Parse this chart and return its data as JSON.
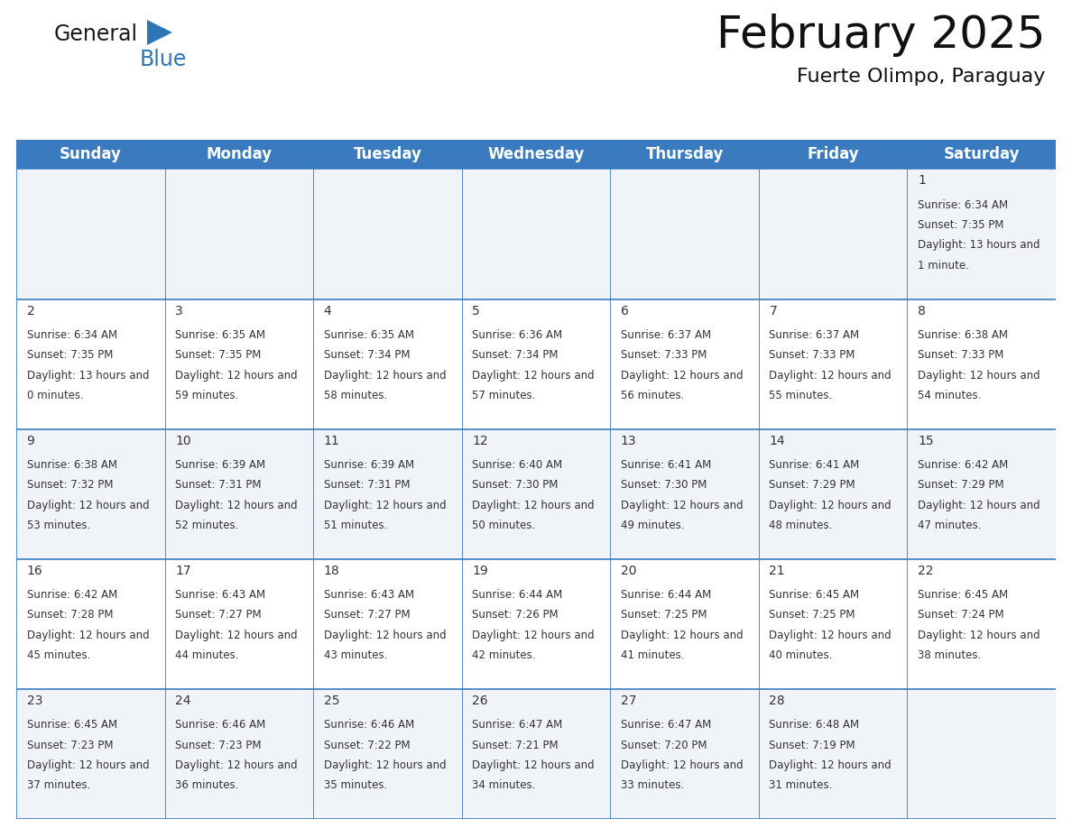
{
  "title": "February 2025",
  "subtitle": "Fuerte Olimpo, Paraguay",
  "header_color": "#3a7bbf",
  "header_text_color": "#ffffff",
  "cell_border_color": "#3a7bbf",
  "odd_row_bg": "#f0f4f8",
  "even_row_bg": "#ffffff",
  "day_headers": [
    "Sunday",
    "Monday",
    "Tuesday",
    "Wednesday",
    "Thursday",
    "Friday",
    "Saturday"
  ],
  "title_fontsize": 36,
  "subtitle_fontsize": 16,
  "header_fontsize": 12,
  "day_num_fontsize": 10,
  "info_fontsize": 8.5,
  "background_color": "#ffffff",
  "day_num_color": "#333333",
  "info_color": "#333333",
  "num_rows": 5,
  "num_cols": 7,
  "calendar_data": [
    [
      null,
      null,
      null,
      null,
      null,
      null,
      {
        "day": 1,
        "sunrise": "6:34 AM",
        "sunset": "7:35 PM",
        "daylight": "13 hours and 1 minute."
      }
    ],
    [
      {
        "day": 2,
        "sunrise": "6:34 AM",
        "sunset": "7:35 PM",
        "daylight": "13 hours and 0 minutes."
      },
      {
        "day": 3,
        "sunrise": "6:35 AM",
        "sunset": "7:35 PM",
        "daylight": "12 hours and 59 minutes."
      },
      {
        "day": 4,
        "sunrise": "6:35 AM",
        "sunset": "7:34 PM",
        "daylight": "12 hours and 58 minutes."
      },
      {
        "day": 5,
        "sunrise": "6:36 AM",
        "sunset": "7:34 PM",
        "daylight": "12 hours and 57 minutes."
      },
      {
        "day": 6,
        "sunrise": "6:37 AM",
        "sunset": "7:33 PM",
        "daylight": "12 hours and 56 minutes."
      },
      {
        "day": 7,
        "sunrise": "6:37 AM",
        "sunset": "7:33 PM",
        "daylight": "12 hours and 55 minutes."
      },
      {
        "day": 8,
        "sunrise": "6:38 AM",
        "sunset": "7:33 PM",
        "daylight": "12 hours and 54 minutes."
      }
    ],
    [
      {
        "day": 9,
        "sunrise": "6:38 AM",
        "sunset": "7:32 PM",
        "daylight": "12 hours and 53 minutes."
      },
      {
        "day": 10,
        "sunrise": "6:39 AM",
        "sunset": "7:31 PM",
        "daylight": "12 hours and 52 minutes."
      },
      {
        "day": 11,
        "sunrise": "6:39 AM",
        "sunset": "7:31 PM",
        "daylight": "12 hours and 51 minutes."
      },
      {
        "day": 12,
        "sunrise": "6:40 AM",
        "sunset": "7:30 PM",
        "daylight": "12 hours and 50 minutes."
      },
      {
        "day": 13,
        "sunrise": "6:41 AM",
        "sunset": "7:30 PM",
        "daylight": "12 hours and 49 minutes."
      },
      {
        "day": 14,
        "sunrise": "6:41 AM",
        "sunset": "7:29 PM",
        "daylight": "12 hours and 48 minutes."
      },
      {
        "day": 15,
        "sunrise": "6:42 AM",
        "sunset": "7:29 PM",
        "daylight": "12 hours and 47 minutes."
      }
    ],
    [
      {
        "day": 16,
        "sunrise": "6:42 AM",
        "sunset": "7:28 PM",
        "daylight": "12 hours and 45 minutes."
      },
      {
        "day": 17,
        "sunrise": "6:43 AM",
        "sunset": "7:27 PM",
        "daylight": "12 hours and 44 minutes."
      },
      {
        "day": 18,
        "sunrise": "6:43 AM",
        "sunset": "7:27 PM",
        "daylight": "12 hours and 43 minutes."
      },
      {
        "day": 19,
        "sunrise": "6:44 AM",
        "sunset": "7:26 PM",
        "daylight": "12 hours and 42 minutes."
      },
      {
        "day": 20,
        "sunrise": "6:44 AM",
        "sunset": "7:25 PM",
        "daylight": "12 hours and 41 minutes."
      },
      {
        "day": 21,
        "sunrise": "6:45 AM",
        "sunset": "7:25 PM",
        "daylight": "12 hours and 40 minutes."
      },
      {
        "day": 22,
        "sunrise": "6:45 AM",
        "sunset": "7:24 PM",
        "daylight": "12 hours and 38 minutes."
      }
    ],
    [
      {
        "day": 23,
        "sunrise": "6:45 AM",
        "sunset": "7:23 PM",
        "daylight": "12 hours and 37 minutes."
      },
      {
        "day": 24,
        "sunrise": "6:46 AM",
        "sunset": "7:23 PM",
        "daylight": "12 hours and 36 minutes."
      },
      {
        "day": 25,
        "sunrise": "6:46 AM",
        "sunset": "7:22 PM",
        "daylight": "12 hours and 35 minutes."
      },
      {
        "day": 26,
        "sunrise": "6:47 AM",
        "sunset": "7:21 PM",
        "daylight": "12 hours and 34 minutes."
      },
      {
        "day": 27,
        "sunrise": "6:47 AM",
        "sunset": "7:20 PM",
        "daylight": "12 hours and 33 minutes."
      },
      {
        "day": 28,
        "sunrise": "6:48 AM",
        "sunset": "7:19 PM",
        "daylight": "12 hours and 31 minutes."
      },
      null
    ]
  ]
}
